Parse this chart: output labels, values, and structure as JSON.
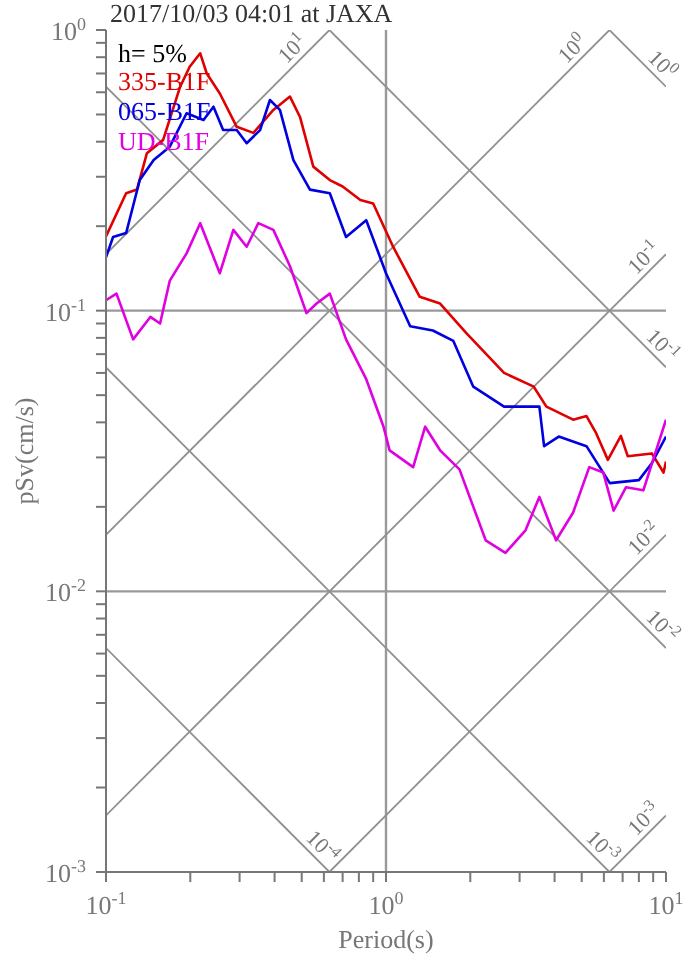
{
  "chart_data": {
    "type": "line",
    "title": "2017/10/03 04:01 at JAXA",
    "xlabel": "Period(s)",
    "ylabel": "pSv(cm/s)",
    "log": "xy",
    "grid": false,
    "legend": "top left",
    "marker": "none",
    "line_style": "solid",
    "xlim": [
      0.1,
      10
    ],
    "ylim": [
      0.001,
      1
    ],
    "xticks": [
      {
        "value": 0.1,
        "label": "10$^{-1}$"
      },
      {
        "value": 0.2,
        "label": null
      },
      {
        "value": 0.3,
        "label": null
      },
      {
        "value": 0.4,
        "label": null
      },
      {
        "value": 0.5,
        "label": null
      },
      {
        "value": 0.6,
        "label": null
      },
      {
        "value": 0.7,
        "label": null
      },
      {
        "value": 0.8,
        "label": null
      },
      {
        "value": 0.9,
        "label": null
      },
      {
        "value": 1,
        "label": "10$^{0}$"
      },
      {
        "value": 2,
        "label": null
      },
      {
        "value": 3,
        "label": null
      },
      {
        "value": 4,
        "label": null
      },
      {
        "value": 5,
        "label": null
      },
      {
        "value": 6,
        "label": null
      },
      {
        "value": 7,
        "label": null
      },
      {
        "value": 8,
        "label": null
      },
      {
        "value": 9,
        "label": null
      },
      {
        "value": 10,
        "label": "10$^{1}$"
      }
    ],
    "yticks": [
      {
        "value": 0.001,
        "label": "10$^{-3}$"
      },
      {
        "value": 0.002,
        "label": null
      },
      {
        "value": 0.003,
        "label": null
      },
      {
        "value": 0.004,
        "label": null
      },
      {
        "value": 0.005,
        "label": null
      },
      {
        "value": 0.006,
        "label": null
      },
      {
        "value": 0.007,
        "label": null
      },
      {
        "value": 0.008,
        "label": null
      },
      {
        "value": 0.009,
        "label": null
      },
      {
        "value": 0.01,
        "label": "10$^{-2}$"
      },
      {
        "value": 0.02,
        "label": null
      },
      {
        "value": 0.03,
        "label": null
      },
      {
        "value": 0.04,
        "label": null
      },
      {
        "value": 0.05,
        "label": null
      },
      {
        "value": 0.06,
        "label": null
      },
      {
        "value": 0.07,
        "label": null
      },
      {
        "value": 0.08,
        "label": null
      },
      {
        "value": 0.09,
        "label": null
      },
      {
        "value": 0.1,
        "label": "10$^{-1}$"
      },
      {
        "value": 0.2,
        "label": null
      },
      {
        "value": 0.3,
        "label": null
      },
      {
        "value": 0.4,
        "label": null
      },
      {
        "value": 0.5,
        "label": null
      },
      {
        "value": 0.6,
        "label": null
      },
      {
        "value": 0.7,
        "label": null
      },
      {
        "value": 0.8,
        "label": null
      },
      {
        "value": 0.9,
        "label": null
      },
      {
        "value": 1,
        "label": "10$^{0}$"
      }
    ],
    "ref_lines": [
      {
        "axis": "x",
        "value": 1,
        "color": "#999999"
      },
      {
        "axis": "y",
        "value": 0.1,
        "color": "#999999"
      },
      {
        "axis": "y",
        "value": 0.01,
        "color": "#999999"
      }
    ],
    "annotations": [
      "h= 5%",
      {
        "text": "10$^{1}$",
        "x": 0.5,
        "y": 0.796
      },
      {
        "text": "10$^{0}$",
        "x": 5,
        "y": 0.796
      },
      {
        "text": "10$^{0}$",
        "x": 9,
        "y": 0.698
      },
      {
        "text": "10$^{-1}$",
        "x": 9,
        "y": 0.143
      },
      {
        "text": "10$^{-1}$",
        "x": 9,
        "y": 0.0698
      },
      {
        "text": "10$^{-2}$",
        "x": 9,
        "y": 0.0143
      },
      {
        "text": "10$^{-2}$",
        "x": 9,
        "y": 0.00698
      },
      {
        "text": "10$^{-3}$",
        "x": 5.5,
        "y": 0.001142
      },
      {
        "text": "10$^{-3}$",
        "x": 9,
        "y": 0.001432
      },
      {
        "text": "10$^{-4}$",
        "x": 0.55,
        "y": 0.001142
      }
    ],
    "series": [
      {
        "type": "line",
        "color": "#909090",
        "x": [
          6.28,
          10
        ],
        "values": [
          1,
          0.628
        ]
      },
      {
        "type": "line",
        "color": "#909090",
        "x": [
          0.628,
          10
        ],
        "values": [
          1,
          0.0628
        ]
      },
      {
        "type": "line",
        "color": "#909090",
        "x": [
          0.1,
          10
        ],
        "values": [
          0.628,
          0.00628
        ]
      },
      {
        "type": "line",
        "color": "#909090",
        "x": [
          0.1,
          6.28
        ],
        "values": [
          0.0628,
          0.001
        ]
      },
      {
        "type": "line",
        "color": "#909090",
        "x": [
          0.1,
          0.628
        ],
        "values": [
          0.00628,
          0.001
        ]
      },
      {
        "type": "line",
        "color": "#909090",
        "x": [
          0.1,
          0.628
        ],
        "values": [
          0.159,
          1
        ]
      },
      {
        "type": "line",
        "color": "#909090",
        "x": [
          0.1,
          6.28
        ],
        "values": [
          0.0159,
          1
        ]
      },
      {
        "type": "line",
        "color": "#909090",
        "x": [
          0.1,
          10
        ],
        "values": [
          0.00159,
          0.159
        ]
      },
      {
        "type": "line",
        "color": "#909090",
        "x": [
          0.628,
          10
        ],
        "values": [
          0.001,
          0.0159
        ]
      },
      {
        "type": "line",
        "color": "#909090",
        "x": [
          6.28,
          10
        ],
        "values": [
          0.001,
          0.00159
        ]
      },
      {
        "name": "335-B1F",
        "color": "#e00000",
        "x": [
          0.1,
          0.118,
          0.129,
          0.14,
          0.16,
          0.184,
          0.199,
          0.217,
          0.229,
          0.255,
          0.293,
          0.336,
          0.396,
          0.454,
          0.493,
          0.55,
          0.63,
          0.7,
          0.81,
          0.9,
          1.06,
          1.32,
          1.56,
          1.94,
          2.64,
          3.37,
          3.74,
          4.66,
          5.2,
          5.63,
          6.2,
          6.9,
          7.3,
          8.9,
          9.8,
          10
        ],
        "values": [
          0.184,
          0.262,
          0.27,
          0.364,
          0.406,
          0.628,
          0.74,
          0.826,
          0.7,
          0.594,
          0.452,
          0.43,
          0.519,
          0.579,
          0.49,
          0.326,
          0.292,
          0.277,
          0.248,
          0.241,
          0.169,
          0.112,
          0.106,
          0.083,
          0.06,
          0.0536,
          0.0455,
          0.0409,
          0.0421,
          0.0366,
          0.0294,
          0.0358,
          0.0303,
          0.031,
          0.0265,
          0.029
        ]
      },
      {
        "name": "065-B1F",
        "color": "#0000e0",
        "x": [
          0.1,
          0.106,
          0.118,
          0.132,
          0.148,
          0.169,
          0.194,
          0.223,
          0.242,
          0.262,
          0.293,
          0.318,
          0.355,
          0.385,
          0.418,
          0.467,
          0.535,
          0.63,
          0.72,
          0.85,
          1.0,
          1.22,
          1.47,
          1.74,
          2.05,
          2.64,
          3.15,
          3.53,
          3.67,
          4.14,
          5.2,
          6.3,
          8.0,
          8.9,
          10
        ],
        "values": [
          0.155,
          0.183,
          0.189,
          0.292,
          0.344,
          0.384,
          0.505,
          0.478,
          0.533,
          0.44,
          0.44,
          0.395,
          0.44,
          0.563,
          0.519,
          0.344,
          0.27,
          0.262,
          0.183,
          0.21,
          0.136,
          0.088,
          0.085,
          0.078,
          0.0536,
          0.0455,
          0.0455,
          0.0455,
          0.0329,
          0.0356,
          0.0329,
          0.0243,
          0.0249,
          0.0286,
          0.0356
        ]
      },
      {
        "name": "UD-B1F",
        "color": "#e000e0",
        "x": [
          0.1,
          0.109,
          0.125,
          0.144,
          0.156,
          0.169,
          0.194,
          0.217,
          0.255,
          0.285,
          0.318,
          0.35,
          0.396,
          0.454,
          0.52,
          0.565,
          0.63,
          0.72,
          0.85,
          0.98,
          1.03,
          1.25,
          1.38,
          1.56,
          1.83,
          2.27,
          2.67,
          3.15,
          3.53,
          4.05,
          4.66,
          5.32,
          5.97,
          6.5,
          7.2,
          8.3,
          10
        ],
        "values": [
          0.109,
          0.115,
          0.079,
          0.095,
          0.09,
          0.128,
          0.16,
          0.205,
          0.136,
          0.194,
          0.169,
          0.205,
          0.194,
          0.144,
          0.098,
          0.106,
          0.115,
          0.079,
          0.057,
          0.0386,
          0.0318,
          0.0277,
          0.0386,
          0.0318,
          0.0272,
          0.0152,
          0.0137,
          0.0165,
          0.0217,
          0.0152,
          0.0191,
          0.0277,
          0.0265,
          0.0194,
          0.0235,
          0.0229,
          0.0409
        ]
      }
    ]
  }
}
